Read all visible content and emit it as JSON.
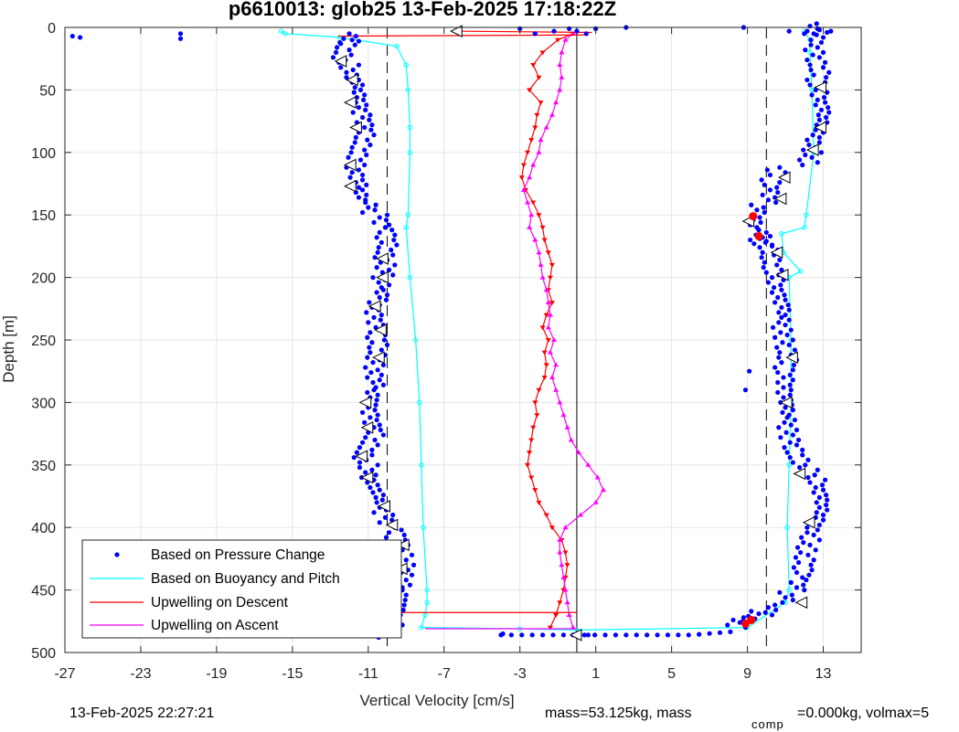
{
  "colors": {
    "pressure": "#0000ff",
    "buoyancy": "#00ffff",
    "descent": "#ff0000",
    "ascent": "#ff00ff",
    "grid": "#e5e5e5",
    "axis": "#262626",
    "marker_red": "#ff0000"
  },
  "footer": {
    "date": "13-Feb-2025 22:27:21",
    "mass": "mass=53.125kg, mass",
    "comp_sub": "comp",
    "mass_comp": "=0.000kg, volmax=5"
  },
  "chart_data": {
    "type": "scatter",
    "title": "p6610013: glob25 13-Feb-2025 17:18:22Z",
    "xlabel": "Vertical Velocity [cm/s]",
    "ylabel": "Depth [m]",
    "xlim": [
      -27,
      15
    ],
    "ylim": [
      0,
      500
    ],
    "y_reversed": true,
    "grid": true,
    "xticks": [
      "-27",
      "-23",
      "-19",
      "-15",
      "-11",
      "-7",
      "-3",
      "1",
      "5",
      "9",
      "13"
    ],
    "xtick_values": [
      -27,
      -23,
      -19,
      -15,
      -11,
      -7,
      -3,
      1,
      5,
      9,
      13
    ],
    "yticks": [
      "0",
      "50",
      "100",
      "150",
      "200",
      "250",
      "300",
      "350",
      "400",
      "450",
      "500"
    ],
    "ytick_values": [
      0,
      50,
      100,
      150,
      200,
      250,
      300,
      350,
      400,
      450,
      500
    ],
    "reference_lines": [
      {
        "style": "dashed",
        "x": -10
      },
      {
        "style": "solid",
        "x": 0
      },
      {
        "style": "dashed",
        "x": 10
      }
    ],
    "legend": {
      "location": "bottom-left",
      "entries": [
        "Based on Pressure Change",
        "Based on Buoyancy and Pitch",
        "Upwelling on Descent",
        "Upwelling on Ascent"
      ]
    },
    "series": [
      {
        "name": "Based on Pressure Change",
        "marker": "dot",
        "descent_profile": {
          "depth": [
            5,
            10,
            20,
            30,
            40,
            50,
            60,
            70,
            80,
            90,
            100,
            110,
            120,
            130,
            140,
            150,
            160,
            170,
            180,
            190,
            200,
            210,
            220,
            230,
            240,
            250,
            260,
            270,
            280,
            290,
            300,
            310,
            320,
            330,
            340,
            350,
            360,
            370,
            380,
            390,
            400,
            410,
            420,
            430,
            440,
            450,
            460,
            470,
            480
          ],
          "velocity": [
            -12.0,
            -12.2,
            -12.4,
            -12.0,
            -11.7,
            -11.6,
            -11.5,
            -11.3,
            -11.2,
            -11.4,
            -11.6,
            -11.7,
            -11.5,
            -11.5,
            -11.0,
            -10.4,
            -10.1,
            -10.0,
            -10.2,
            -10.1,
            -10.3,
            -10.4,
            -10.8,
            -10.7,
            -10.6,
            -10.5,
            -10.6,
            -10.7,
            -10.6,
            -10.9,
            -11.0,
            -10.9,
            -10.7,
            -11.0,
            -11.3,
            -11.0,
            -10.9,
            -10.6,
            -10.4,
            -10.1,
            -9.6,
            -9.4,
            -9.2,
            -9.1,
            -9.2,
            -9.4,
            -9.5,
            -9.7,
            -10.0
          ]
        },
        "ascent_profile": {
          "depth": [
            480,
            475,
            470,
            460,
            450,
            440,
            430,
            420,
            410,
            400,
            390,
            380,
            370,
            360,
            350,
            340,
            330,
            320,
            310,
            300,
            290,
            280,
            270,
            260,
            250,
            240,
            230,
            220,
            210,
            200,
            190,
            180,
            175,
            170,
            160,
            150,
            140,
            130,
            120,
            110,
            100,
            90,
            80,
            70,
            60,
            50,
            40,
            30,
            20,
            10,
            5
          ],
          "velocity": [
            8.4,
            9.2,
            10.1,
            11.0,
            11.6,
            11.9,
            12.0,
            12.1,
            12.3,
            12.6,
            12.8,
            12.8,
            12.6,
            12.2,
            11.7,
            11.4,
            11.2,
            11.1,
            11.0,
            10.9,
            10.9,
            10.9,
            11.1,
            11.0,
            10.9,
            10.8,
            10.8,
            10.6,
            10.4,
            10.3,
            10.2,
            10.1,
            9.8,
            9.6,
            9.3,
            9.5,
            10.1,
            10.2,
            10.5,
            12.2,
            12.4,
            12.6,
            12.8,
            12.9,
            12.7,
            12.6,
            12.8,
            12.6,
            12.5,
            12.8,
            12.3
          ]
        },
        "outliers": [
          [
            -26.6,
            7
          ],
          [
            -26.2,
            8
          ],
          [
            -20.9,
            5
          ],
          [
            -20.9,
            9
          ],
          [
            2.6,
            0
          ],
          [
            8.8,
            0
          ],
          [
            8.9,
            290
          ],
          [
            9.1,
            275
          ],
          [
            -11.1,
            444
          ],
          [
            -3.9,
            485
          ],
          [
            -0.2,
            486
          ],
          [
            0.6,
            486
          ]
        ]
      },
      {
        "name": "Based on Buoyancy and Pitch",
        "depth": [
          3,
          5,
          8,
          15,
          30,
          50,
          80,
          100,
          150,
          160,
          200,
          250,
          300,
          350,
          400,
          450,
          460,
          470,
          480,
          481,
          482,
          480,
          460,
          450,
          400,
          350,
          300,
          250,
          200,
          195,
          180,
          165,
          160,
          150,
          100,
          50,
          20,
          10,
          3
        ],
        "velocity": [
          -15.6,
          -15.4,
          -12.5,
          -9.5,
          -9.0,
          -8.9,
          -8.8,
          -8.8,
          -8.9,
          -9.0,
          -8.8,
          -8.5,
          -8.3,
          -8.2,
          -8.1,
          -7.9,
          -7.9,
          -8.0,
          -8.2,
          -3.0,
          0.0,
          9.0,
          11.0,
          11.2,
          11.1,
          11.2,
          11.3,
          11.3,
          11.2,
          11.8,
          10.9,
          10.8,
          12.0,
          12.1,
          12.5,
          12.4,
          12.3,
          12.3,
          12.0
        ]
      },
      {
        "name": "Upwelling on Descent",
        "marker": "triangle-down",
        "depth": [
          5,
          10,
          20,
          30,
          40,
          50,
          60,
          70,
          80,
          90,
          100,
          110,
          120,
          130,
          140,
          150,
          160,
          170,
          180,
          190,
          200,
          210,
          220,
          230,
          240,
          250,
          260,
          270,
          280,
          290,
          300,
          310,
          320,
          330,
          340,
          350,
          360,
          370,
          380,
          390,
          400,
          410,
          420,
          430,
          440,
          450,
          460,
          470,
          480
        ],
        "velocity": [
          -0.2,
          -1.0,
          -1.8,
          -2.3,
          -2.0,
          -2.5,
          -1.9,
          -2.1,
          -2.2,
          -2.4,
          -2.6,
          -2.8,
          -2.9,
          -2.7,
          -2.3,
          -2.0,
          -1.8,
          -1.7,
          -1.5,
          -1.3,
          -1.4,
          -1.5,
          -1.3,
          -1.6,
          -1.8,
          -1.5,
          -1.7,
          -1.6,
          -1.7,
          -2.0,
          -2.2,
          -2.1,
          -2.3,
          -2.4,
          -2.5,
          -2.6,
          -2.4,
          -2.2,
          -2.0,
          -1.6,
          -1.3,
          -0.8,
          -0.6,
          -0.5,
          -0.6,
          -0.7,
          -0.9,
          -1.1,
          -1.4
        ]
      },
      {
        "name": "Upwelling on Ascent",
        "marker": "triangle-up",
        "depth": [
          480,
          470,
          460,
          450,
          440,
          430,
          420,
          410,
          400,
          390,
          380,
          370,
          360,
          350,
          340,
          330,
          320,
          310,
          300,
          290,
          280,
          270,
          260,
          250,
          240,
          230,
          220,
          210,
          200,
          190,
          180,
          170,
          160,
          150,
          140,
          130,
          120,
          110,
          100,
          90,
          80,
          70,
          60,
          50,
          40,
          30,
          20,
          10,
          5
        ],
        "velocity": [
          -0.2,
          -0.4,
          -0.5,
          -0.6,
          -0.7,
          -0.8,
          -0.9,
          -0.9,
          -0.6,
          0.2,
          1.0,
          1.4,
          1.1,
          0.6,
          0.1,
          -0.3,
          -0.5,
          -0.7,
          -0.9,
          -1.1,
          -1.3,
          -1.1,
          -1.4,
          -1.2,
          -1.5,
          -1.4,
          -1.5,
          -1.6,
          -1.8,
          -1.9,
          -2.0,
          -2.2,
          -2.5,
          -2.4,
          -2.6,
          -2.8,
          -2.5,
          -2.3,
          -2.0,
          -1.9,
          -1.6,
          -1.3,
          -1.1,
          -0.9,
          -0.8,
          -0.9,
          -0.8,
          -0.6,
          -0.2
        ]
      }
    ],
    "triangle_markers": [
      [
        -6.3,
        3
      ],
      [
        -12.4,
        27
      ],
      [
        -11.8,
        42
      ],
      [
        -11.9,
        60
      ],
      [
        -11.6,
        80
      ],
      [
        -11.9,
        110
      ],
      [
        -11.9,
        127
      ],
      [
        -10.2,
        185
      ],
      [
        -10.2,
        200
      ],
      [
        -10.6,
        223
      ],
      [
        -10.3,
        242
      ],
      [
        -10.4,
        264
      ],
      [
        -11.1,
        300
      ],
      [
        -11.0,
        320
      ],
      [
        -11.3,
        343
      ],
      [
        -11.0,
        360
      ],
      [
        -10.1,
        383
      ],
      [
        -9.7,
        398
      ],
      [
        -9.1,
        414
      ],
      [
        -9.2,
        433
      ],
      [
        -9.5,
        460
      ],
      [
        -10.0,
        478
      ],
      [
        0.0,
        486
      ],
      [
        11.9,
        460
      ],
      [
        12.3,
        396
      ],
      [
        11.8,
        357
      ],
      [
        11.1,
        300
      ],
      [
        11.4,
        264
      ],
      [
        10.9,
        198
      ],
      [
        10.6,
        180
      ],
      [
        10.8,
        137
      ],
      [
        11.0,
        120
      ],
      [
        12.5,
        98
      ],
      [
        12.9,
        80
      ],
      [
        12.9,
        48
      ],
      [
        9.1,
        155
      ]
    ],
    "red_markers": [
      [
        9.3,
        151
      ],
      [
        9.6,
        167
      ],
      [
        -9.9,
        478
      ],
      [
        8.9,
        477
      ],
      [
        9.2,
        474
      ]
    ]
  }
}
